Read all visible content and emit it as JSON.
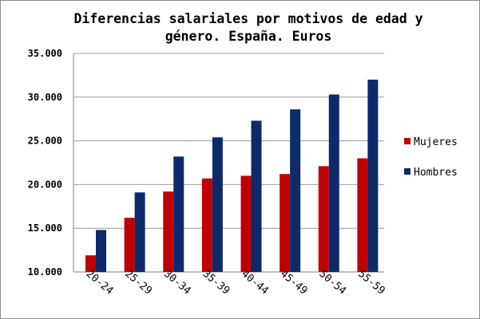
{
  "chart_data": {
    "type": "bar",
    "title": "Diferencias salariales por motivos de edad y género. España. Euros",
    "categories": [
      "20-24",
      "25-29",
      "30-34",
      "35-39",
      "40-44",
      "45-49",
      "50-54",
      "55-59"
    ],
    "series": [
      {
        "name": "Mujeres",
        "color": "#c00000",
        "values": [
          11900,
          16200,
          19200,
          20700,
          21000,
          21200,
          22100,
          23000
        ]
      },
      {
        "name": "Hombres",
        "color": "#0d2a6b",
        "values": [
          14800,
          19100,
          23200,
          25400,
          27300,
          28600,
          30300,
          32000
        ]
      }
    ],
    "ylim": [
      10000,
      35000
    ],
    "yticks": [
      10000,
      15000,
      20000,
      25000,
      30000,
      35000
    ],
    "ytick_labels": [
      "10.000",
      "15.000",
      "20.000",
      "25.000",
      "30.000",
      "35.000"
    ],
    "xlabel": "",
    "ylabel": "",
    "grid": "horizontal",
    "legend": "right"
  }
}
